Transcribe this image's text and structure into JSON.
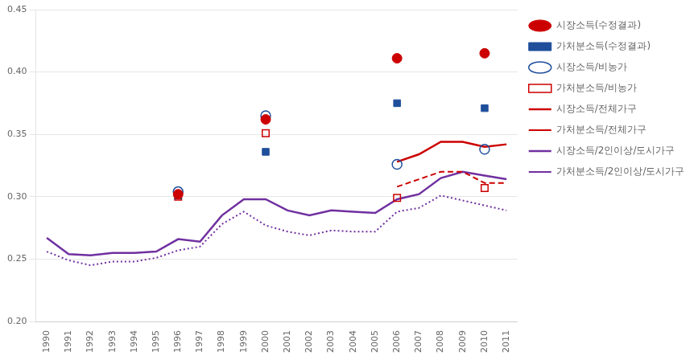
{
  "chart_data": {
    "type": "line",
    "xlim": [
      1989.5,
      2011.5
    ],
    "xticks": [
      1990,
      1991,
      1992,
      1993,
      1994,
      1995,
      1996,
      1997,
      1998,
      1999,
      2000,
      2001,
      2002,
      2003,
      2004,
      2005,
      2006,
      2007,
      2008,
      2009,
      2010,
      2011
    ],
    "ylim": [
      0.2,
      0.45
    ],
    "yticks": [
      {
        "value": 0.2,
        "label": "0.20"
      },
      0.25,
      {
        "value": 0.3,
        "label": "0.30"
      },
      0.35,
      {
        "value": 0.4,
        "label": "0.40"
      },
      0.45
    ],
    "grid": "y",
    "legend": "right",
    "series": [
      {
        "name": "시장소득(수정결과)",
        "type": "scatter",
        "marker": "circle",
        "color": "#CC0000",
        "x": [
          1996,
          2000,
          2006,
          2010
        ],
        "values": [
          0.302,
          0.362,
          0.411,
          0.415
        ]
      },
      {
        "name": "가처분소득(수정결과)",
        "type": "scatter",
        "marker": "square",
        "color": "#1F4E9B",
        "x": [
          1996,
          2000,
          2006,
          2010
        ],
        "values": [
          0.301,
          0.336,
          0.375,
          0.371
        ]
      },
      {
        "name": "시장소득/비농가",
        "type": "scatter",
        "marker": "open_circle",
        "color": "#1F4E9B",
        "x": [
          1996,
          2000,
          2006,
          2010
        ],
        "values": [
          0.304,
          0.365,
          0.326,
          0.338
        ]
      },
      {
        "name": "가처분소득/비농가",
        "type": "scatter",
        "marker": "open_square",
        "color": "#CC0000",
        "x": [
          1996,
          2000,
          2006,
          2010
        ],
        "values": [
          0.3,
          0.351,
          0.299,
          0.307
        ]
      },
      {
        "name": "시장소득/전체가구",
        "type": "line",
        "line_style": "solid",
        "color": "#CC0000",
        "x": [
          2006,
          2007,
          2008,
          2009,
          2010,
          2011
        ],
        "values": [
          0.328,
          0.334,
          0.344,
          0.344,
          0.34,
          0.342
        ]
      },
      {
        "name": "가처분소득/전체가구",
        "type": "line",
        "line_style": "dashed",
        "color": "#CC0000",
        "x": [
          2006,
          2007,
          2008,
          2009,
          2010,
          2011
        ],
        "values": [
          0.308,
          0.314,
          0.32,
          0.32,
          0.311,
          0.311
        ]
      },
      {
        "name": "시장소득/2인이상/도시가구",
        "type": "line",
        "line_style": "solid",
        "color": "#7030A0",
        "x": [
          1990,
          1991,
          1992,
          1993,
          1994,
          1995,
          1996,
          1997,
          1998,
          1999,
          2000,
          2001,
          2002,
          2003,
          2004,
          2005,
          2006,
          2007,
          2008,
          2009,
          2010,
          2011
        ],
        "values": [
          0.267,
          0.254,
          0.253,
          0.255,
          0.255,
          0.256,
          0.266,
          0.264,
          0.285,
          0.298,
          0.298,
          0.289,
          0.285,
          0.289,
          0.288,
          0.287,
          0.298,
          0.302,
          0.315,
          0.32,
          0.317,
          0.314
        ]
      },
      {
        "name": "가처분소득/2인이상/도시가구",
        "type": "line",
        "line_style": "dotted",
        "color": "#7030A0",
        "x": [
          1990,
          1991,
          1992,
          1993,
          1994,
          1995,
          1996,
          1997,
          1998,
          1999,
          2000,
          2001,
          2002,
          2003,
          2004,
          2005,
          2006,
          2007,
          2008,
          2009,
          2010,
          2011
        ],
        "values": [
          0.256,
          0.249,
          0.245,
          0.248,
          0.248,
          0.251,
          0.257,
          0.26,
          0.278,
          0.288,
          0.277,
          0.272,
          0.269,
          0.273,
          0.272,
          0.272,
          0.288,
          0.291,
          0.301,
          0.297,
          0.293,
          0.289
        ]
      }
    ]
  }
}
